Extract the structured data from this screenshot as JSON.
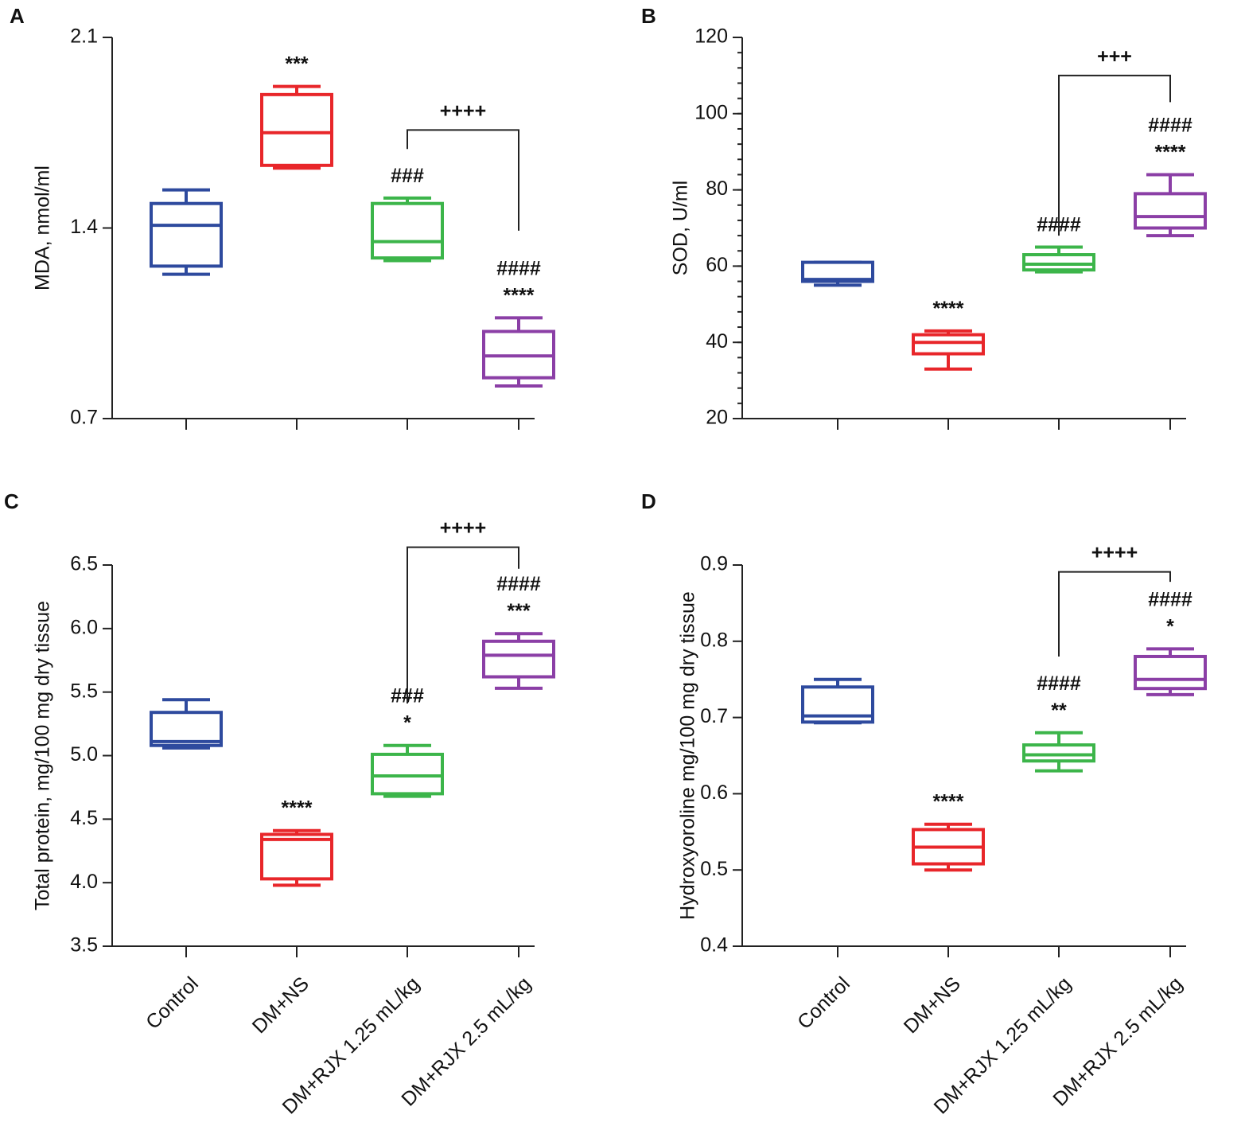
{
  "figure": {
    "categories": [
      "Control",
      "DM+NS",
      "DM+RJX 1.25 mL/kg",
      "DM+RJX 2.5 mL/kg"
    ],
    "colors": [
      "#2e4a9e",
      "#e8262a",
      "#3cb54a",
      "#8b3fa6"
    ]
  },
  "chart_data": [
    {
      "panel": "A",
      "type": "box",
      "ylabel": "MDA, nmol/ml",
      "ylim": [
        0.7,
        2.1
      ],
      "yticks": [
        "0.7",
        "1.4",
        "2.1"
      ],
      "minor_ticks": false,
      "show_category_labels": false,
      "boxes": [
        {
          "min": 1.23,
          "q1": 1.26,
          "median": 1.41,
          "q3": 1.49,
          "max": 1.54
        },
        {
          "min": 1.62,
          "q1": 1.63,
          "median": 1.75,
          "q3": 1.89,
          "max": 1.92
        },
        {
          "min": 1.28,
          "q1": 1.29,
          "median": 1.35,
          "q3": 1.49,
          "max": 1.51
        },
        {
          "min": 0.82,
          "q1": 0.85,
          "median": 0.93,
          "q3": 1.02,
          "max": 1.07
        }
      ],
      "annotations": [
        {
          "group": 1,
          "lines": [
            "***"
          ]
        },
        {
          "group": 2,
          "lines": [
            "###"
          ]
        },
        {
          "group": 3,
          "lines": [
            "####",
            "****"
          ]
        }
      ],
      "bracket": {
        "from": 2,
        "to": 3,
        "label": "++++",
        "level": 1.76,
        "left_drop": 1.69,
        "right_drop": 1.39
      }
    },
    {
      "panel": "B",
      "type": "box",
      "ylabel": "SOD, U/ml",
      "ylim": [
        20,
        120
      ],
      "yticks": [
        "20",
        "40",
        "60",
        "80",
        "100",
        "120"
      ],
      "minor_ticks": true,
      "show_category_labels": false,
      "boxes": [
        {
          "min": 55,
          "q1": 56,
          "median": 56.5,
          "q3": 61,
          "max": 61
        },
        {
          "min": 33,
          "q1": 37,
          "median": 40,
          "q3": 42,
          "max": 43
        },
        {
          "min": 58.5,
          "q1": 59,
          "median": 60.5,
          "q3": 63,
          "max": 65
        },
        {
          "min": 68,
          "q1": 70,
          "median": 73,
          "q3": 79,
          "max": 84
        }
      ],
      "annotations": [
        {
          "group": 1,
          "lines": [
            "****"
          ]
        },
        {
          "group": 2,
          "lines": [
            "####"
          ]
        },
        {
          "group": 3,
          "lines": [
            "####",
            "****"
          ]
        }
      ],
      "bracket": {
        "from": 2,
        "to": 3,
        "label": "+++",
        "level": 110,
        "left_drop": 68,
        "right_drop": 103
      }
    },
    {
      "panel": "C",
      "type": "box",
      "ylabel": "Total protein, mg/100 mg dry tissue",
      "ylim": [
        3.5,
        6.5
      ],
      "yticks": [
        "3.5",
        "4.0",
        "4.5",
        "5.0",
        "5.5",
        "6.0",
        "6.5"
      ],
      "minor_ticks": false,
      "show_category_labels": true,
      "boxes": [
        {
          "min": 5.06,
          "q1": 5.08,
          "median": 5.11,
          "q3": 5.34,
          "max": 5.44
        },
        {
          "min": 3.98,
          "q1": 4.03,
          "median": 4.34,
          "q3": 4.38,
          "max": 4.41
        },
        {
          "min": 4.68,
          "q1": 4.7,
          "median": 4.84,
          "q3": 5.01,
          "max": 5.08
        },
        {
          "min": 5.53,
          "q1": 5.62,
          "median": 5.79,
          "q3": 5.9,
          "max": 5.96
        }
      ],
      "annotations": [
        {
          "group": 1,
          "lines": [
            "****"
          ]
        },
        {
          "group": 2,
          "lines": [
            "###",
            "*"
          ]
        },
        {
          "group": 3,
          "lines": [
            "####",
            "***"
          ]
        }
      ],
      "bracket": {
        "from": 2,
        "to": 3,
        "label": "++++",
        "level": 6.64,
        "left_drop": 5.41,
        "right_drop": 6.47
      }
    },
    {
      "panel": "D",
      "type": "box",
      "ylabel": "Hydroxyoroline mg/100 mg dry tissue",
      "ylim": [
        0.4,
        0.9
      ],
      "yticks": [
        "0.4",
        "0.5",
        "0.6",
        "0.7",
        "0.8",
        "0.9"
      ],
      "minor_ticks": false,
      "show_category_labels": true,
      "boxes": [
        {
          "min": 0.693,
          "q1": 0.694,
          "median": 0.702,
          "q3": 0.74,
          "max": 0.75
        },
        {
          "min": 0.5,
          "q1": 0.508,
          "median": 0.53,
          "q3": 0.553,
          "max": 0.56
        },
        {
          "min": 0.63,
          "q1": 0.643,
          "median": 0.651,
          "q3": 0.664,
          "max": 0.68
        },
        {
          "min": 0.73,
          "q1": 0.738,
          "median": 0.75,
          "q3": 0.78,
          "max": 0.79
        }
      ],
      "annotations": [
        {
          "group": 1,
          "lines": [
            "****"
          ]
        },
        {
          "group": 2,
          "lines": [
            "####",
            "**"
          ]
        },
        {
          "group": 3,
          "lines": [
            "####",
            "*"
          ]
        }
      ],
      "bracket": {
        "from": 2,
        "to": 3,
        "label": "++++",
        "level": 0.891,
        "left_drop": 0.78,
        "right_drop": 0.878
      }
    }
  ]
}
